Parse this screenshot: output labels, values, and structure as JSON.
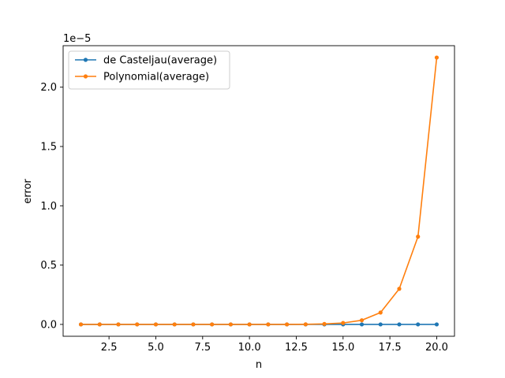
{
  "chart_data": {
    "type": "line",
    "title": "",
    "xlabel": "n",
    "ylabel": "error",
    "y_offset_label": "1e−5",
    "xlim": [
      0.05,
      20.95
    ],
    "ylim": [
      -0.1,
      2.35
    ],
    "x_ticks": [
      2.5,
      5.0,
      7.5,
      10.0,
      12.5,
      15.0,
      17.5,
      20.0
    ],
    "x_tick_labels": [
      "2.5",
      "5.0",
      "7.5",
      "10.0",
      "12.5",
      "15.0",
      "17.5",
      "20.0"
    ],
    "y_ticks": [
      0.0,
      0.5,
      1.0,
      1.5,
      2.0
    ],
    "y_tick_labels": [
      "0.0",
      "0.5",
      "1.0",
      "1.5",
      "2.0"
    ],
    "grid": false,
    "legend_position": "top-left",
    "x": [
      1,
      2,
      3,
      4,
      5,
      6,
      7,
      8,
      9,
      10,
      11,
      12,
      13,
      14,
      15,
      16,
      17,
      18,
      19,
      20
    ],
    "series": [
      {
        "name": "de Casteljau(average)",
        "color": "#1f77b4",
        "values": [
          0,
          0,
          0,
          0,
          0,
          0,
          0,
          0,
          0,
          0,
          0,
          0,
          0,
          0,
          0,
          0,
          0,
          0,
          0,
          0
        ]
      },
      {
        "name": "Polynomial(average)",
        "color": "#ff7f0e",
        "values": [
          0,
          0,
          0,
          0,
          0,
          0,
          0,
          0,
          0,
          0,
          0,
          0,
          0.001,
          0.004,
          0.012,
          0.035,
          0.1,
          0.3,
          0.74,
          2.25
        ]
      }
    ]
  }
}
